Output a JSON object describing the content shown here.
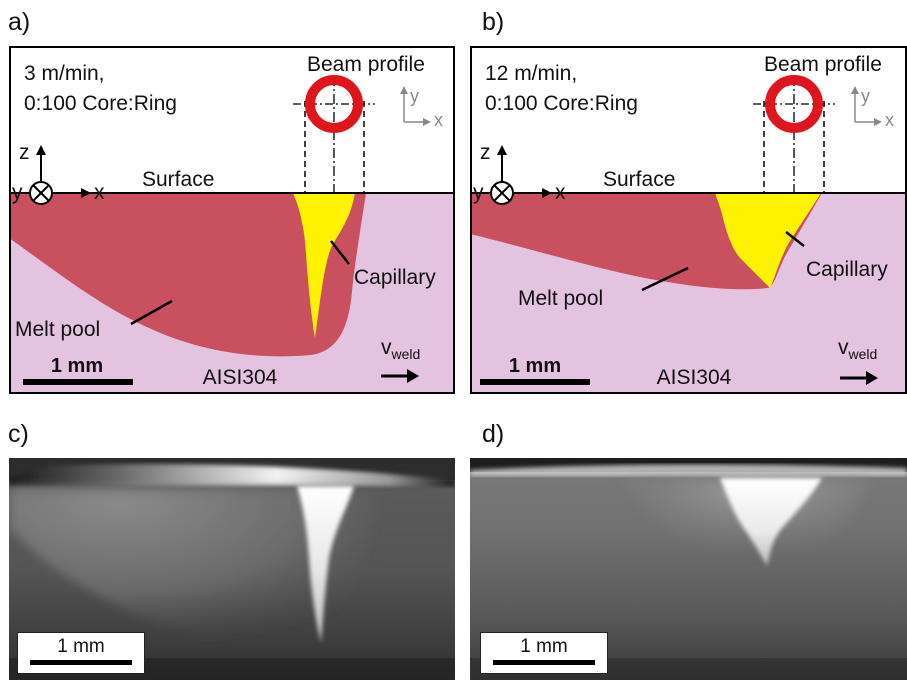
{
  "panel_labels": {
    "a": "a)",
    "b": "b)",
    "c": "c)",
    "d": "d)"
  },
  "panels": [
    {
      "speed": "3 m/min,",
      "ratio": "0:100 Core:Ring",
      "beam_profile": "Beam profile",
      "axis_y": "y",
      "axis_x": "x",
      "coord_z": "z",
      "coord_y": "y",
      "coord_x": "x",
      "surface": "Surface",
      "capillary": "Capillary",
      "melt_pool": "Melt pool",
      "scale": "1 mm",
      "material": "AISI304",
      "v_weld": "v",
      "v_weld_sub": "weld"
    },
    {
      "speed": "12 m/min,",
      "ratio": "0:100 Core:Ring",
      "beam_profile": "Beam profile",
      "axis_y": "y",
      "axis_x": "x",
      "coord_z": "z",
      "coord_y": "y",
      "coord_x": "x",
      "surface": "Surface",
      "capillary": "Capillary",
      "melt_pool": "Melt pool",
      "scale": "1 mm",
      "material": "AISI304",
      "v_weld": "v",
      "v_weld_sub": "weld"
    }
  ],
  "xray": [
    {
      "scale": "1 mm"
    },
    {
      "scale": "1 mm"
    }
  ],
  "colors": {
    "material": "#e3c3df",
    "melt_pool": "#c9505f",
    "capillary": "#fff200",
    "ring": "#e0141c"
  }
}
